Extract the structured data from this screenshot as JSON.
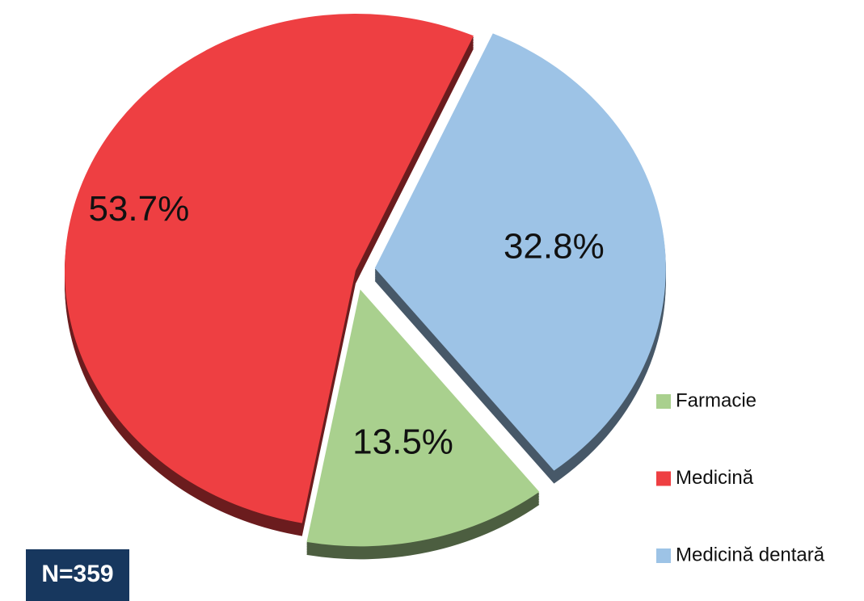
{
  "chart_data": {
    "type": "pie",
    "categories": [
      "Farmacie",
      "Medicină",
      "Medicină dentară"
    ],
    "values": [
      13.5,
      53.7,
      32.8
    ],
    "value_labels": [
      "13.5%",
      "53.7%",
      "32.8%"
    ],
    "colors": [
      "#a9d08e",
      "#ee3f42",
      "#9dc3e6"
    ],
    "legend": "right",
    "annotation": "N=359"
  }
}
